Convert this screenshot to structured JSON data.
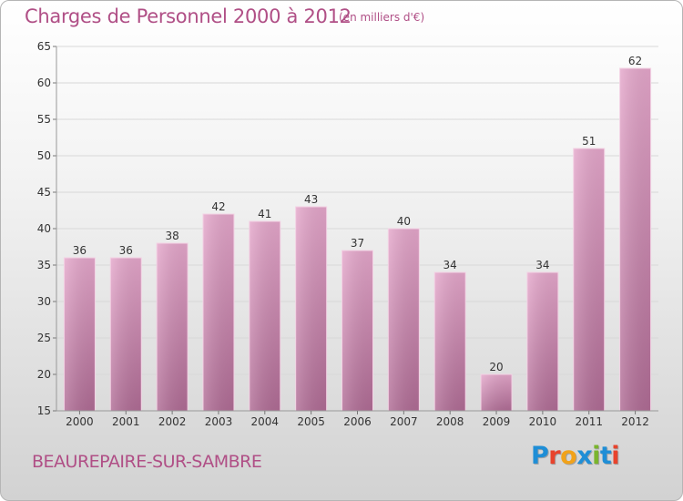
{
  "title": "Charges de Personnel 2000 à 2012",
  "unit_note": "(en milliers d'€)",
  "location": "BEAUREPAIRE-SUR-SAMBRE",
  "logo": {
    "text": "Proxiti",
    "letter_colors": [
      "#1f8ed6",
      "#e8432c",
      "#f1a21a",
      "#1f8ed6",
      "#7ab52d",
      "#1f8ed6",
      "#e8432c"
    ]
  },
  "colors": {
    "title": "#b04f86",
    "bar_top": "#e5a7cb",
    "bar_bottom": "#b06c95",
    "grid": "#d8d8d8",
    "axis_text": "#333333"
  },
  "chart_data": {
    "type": "bar",
    "categories": [
      "2000",
      "2001",
      "2002",
      "2003",
      "2004",
      "2005",
      "2006",
      "2007",
      "2008",
      "2009",
      "2010",
      "2011",
      "2012"
    ],
    "values": [
      36,
      36,
      38,
      42,
      41,
      43,
      37,
      40,
      34,
      20,
      34,
      51,
      62
    ],
    "title": "Charges de Personnel 2000 à 2012",
    "subtitle": "(en milliers d'€)",
    "xlabel": "",
    "ylabel": "",
    "ylim": [
      15,
      65
    ],
    "yticks": [
      15,
      20,
      25,
      30,
      35,
      40,
      45,
      50,
      55,
      60,
      65
    ],
    "grid": true,
    "data_labels": true
  }
}
